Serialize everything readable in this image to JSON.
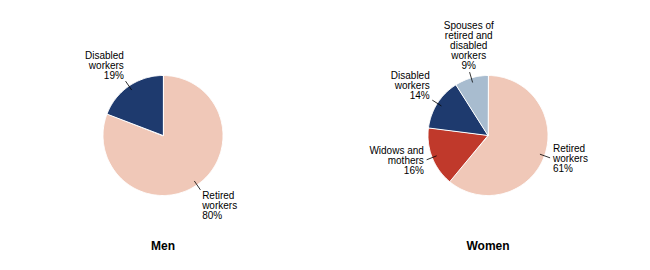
{
  "chart_data": [
    {
      "type": "pie",
      "title": "Men",
      "categories": [
        "Retired\nworkers",
        "Disabled\nworkers"
      ],
      "values": [
        80,
        19
      ],
      "value_labels": [
        "80%",
        "19%"
      ],
      "colors": [
        "#f0c8b8",
        "#1e3a6e"
      ],
      "data_labels": true
    },
    {
      "type": "pie",
      "title": "Women",
      "categories": [
        "Retired\nworkers",
        "Widows and\nmothers",
        "Disabled\nworkers",
        "Spouses of\nretired and\ndisabled\nworkers"
      ],
      "values": [
        61,
        16,
        14,
        9
      ],
      "value_labels": [
        "61%",
        "16%",
        "14%",
        "9%"
      ],
      "colors": [
        "#f0c8b8",
        "#c0392b",
        "#1e3a6e",
        "#a8bccf"
      ],
      "data_labels": true
    }
  ]
}
